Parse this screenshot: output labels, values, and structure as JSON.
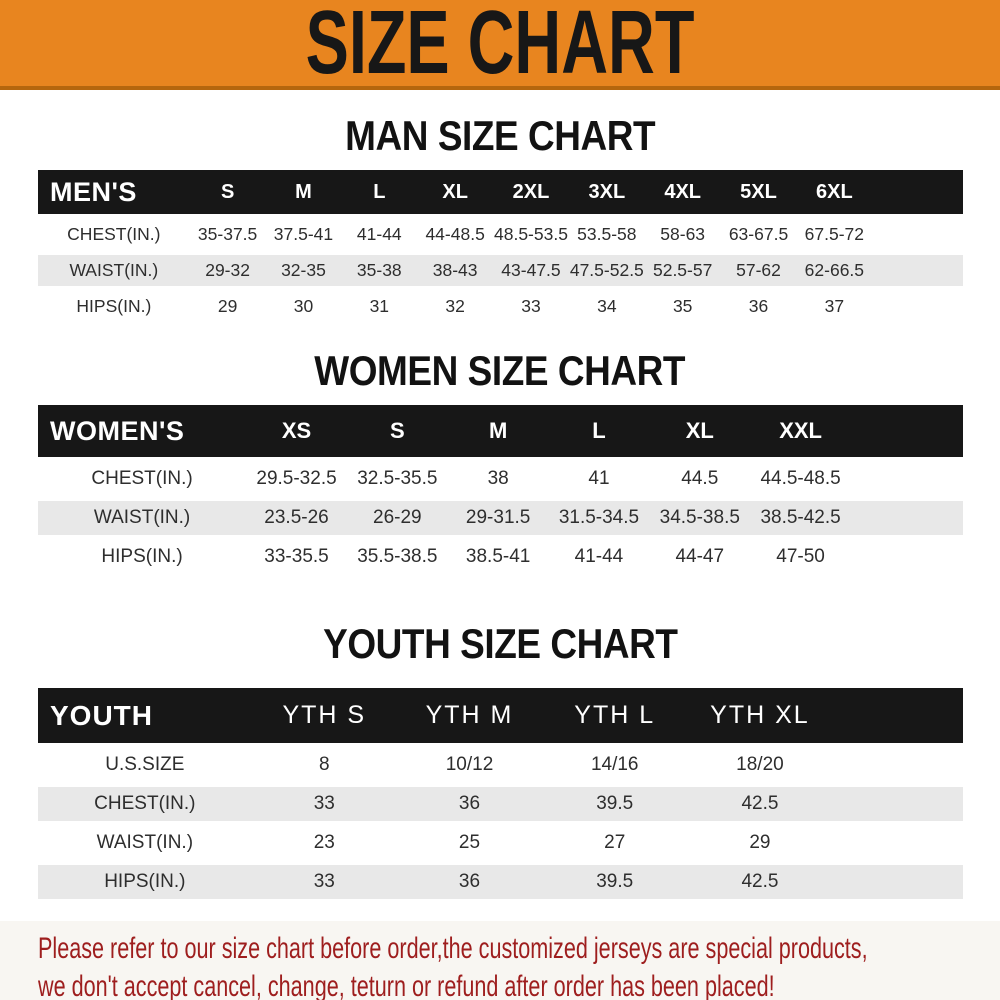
{
  "banner": {
    "title": "SIZE CHART"
  },
  "sections": [
    {
      "id": "men",
      "heading": "MAN SIZE CHART",
      "table": {
        "header_label": "MEN'S",
        "columns": [
          "S",
          "M",
          "L",
          "XL",
          "2XL",
          "3XL",
          "4XL",
          "5XL",
          "6XL"
        ],
        "rows": [
          {
            "label": "CHEST(IN.)",
            "values": [
              "35-37.5",
              "37.5-41",
              "41-44",
              "44-48.5",
              "48.5-53.5",
              "53.5-58",
              "58-63",
              "63-67.5",
              "67.5-72"
            ]
          },
          {
            "label": "WAIST(IN.)",
            "values": [
              "29-32",
              "32-35",
              "35-38",
              "38-43",
              "43-47.5",
              "47.5-52.5",
              "52.5-57",
              "57-62",
              "62-66.5"
            ]
          },
          {
            "label": "HIPS(IN.)",
            "values": [
              "29",
              "30",
              "31",
              "32",
              "33",
              "34",
              "35",
              "36",
              "37"
            ]
          }
        ]
      }
    },
    {
      "id": "women",
      "heading": "WOMEN SIZE CHART",
      "table": {
        "header_label": "WOMEN'S",
        "columns": [
          "XS",
          "S",
          "M",
          "L",
          "XL",
          "XXL"
        ],
        "rows": [
          {
            "label": "CHEST(IN.)",
            "values": [
              "29.5-32.5",
              "32.5-35.5",
              "38",
              "41",
              "44.5",
              "44.5-48.5"
            ]
          },
          {
            "label": "WAIST(IN.)",
            "values": [
              "23.5-26",
              "26-29",
              "29-31.5",
              "31.5-34.5",
              "34.5-38.5",
              "38.5-42.5"
            ]
          },
          {
            "label": "HIPS(IN.)",
            "values": [
              "33-35.5",
              "35.5-38.5",
              "38.5-41",
              "41-44",
              "44-47",
              "47-50"
            ]
          }
        ]
      }
    },
    {
      "id": "youth",
      "heading": "YOUTH SIZE CHART",
      "table": {
        "header_label": "YOUTH",
        "columns": [
          "YTH S",
          "YTH M",
          "YTH L",
          "YTH XL"
        ],
        "rows": [
          {
            "label": "U.S.SIZE",
            "values": [
              "8",
              "10/12",
              "14/16",
              "18/20"
            ]
          },
          {
            "label": "CHEST(IN.)",
            "values": [
              "33",
              "36",
              "39.5",
              "42.5"
            ]
          },
          {
            "label": "WAIST(IN.)",
            "values": [
              "23",
              "25",
              "27",
              "29"
            ]
          },
          {
            "label": "HIPS(IN.)",
            "values": [
              "33",
              "36",
              "39.5",
              "42.5"
            ]
          }
        ]
      }
    }
  ],
  "footer": {
    "line1": "Please refer to our size chart before order,the customized jerseys are special products,",
    "line2": "we don't accept cancel, change, teturn or refund after order has been placed!"
  },
  "colors": {
    "banner_bg": "#E8851F",
    "banner_border": "#B5660D",
    "header_bar": "#171717",
    "row_alt": "#E8E8E8",
    "notice_text": "#9E1E1E",
    "notice_bg": "#F8F6F2"
  }
}
